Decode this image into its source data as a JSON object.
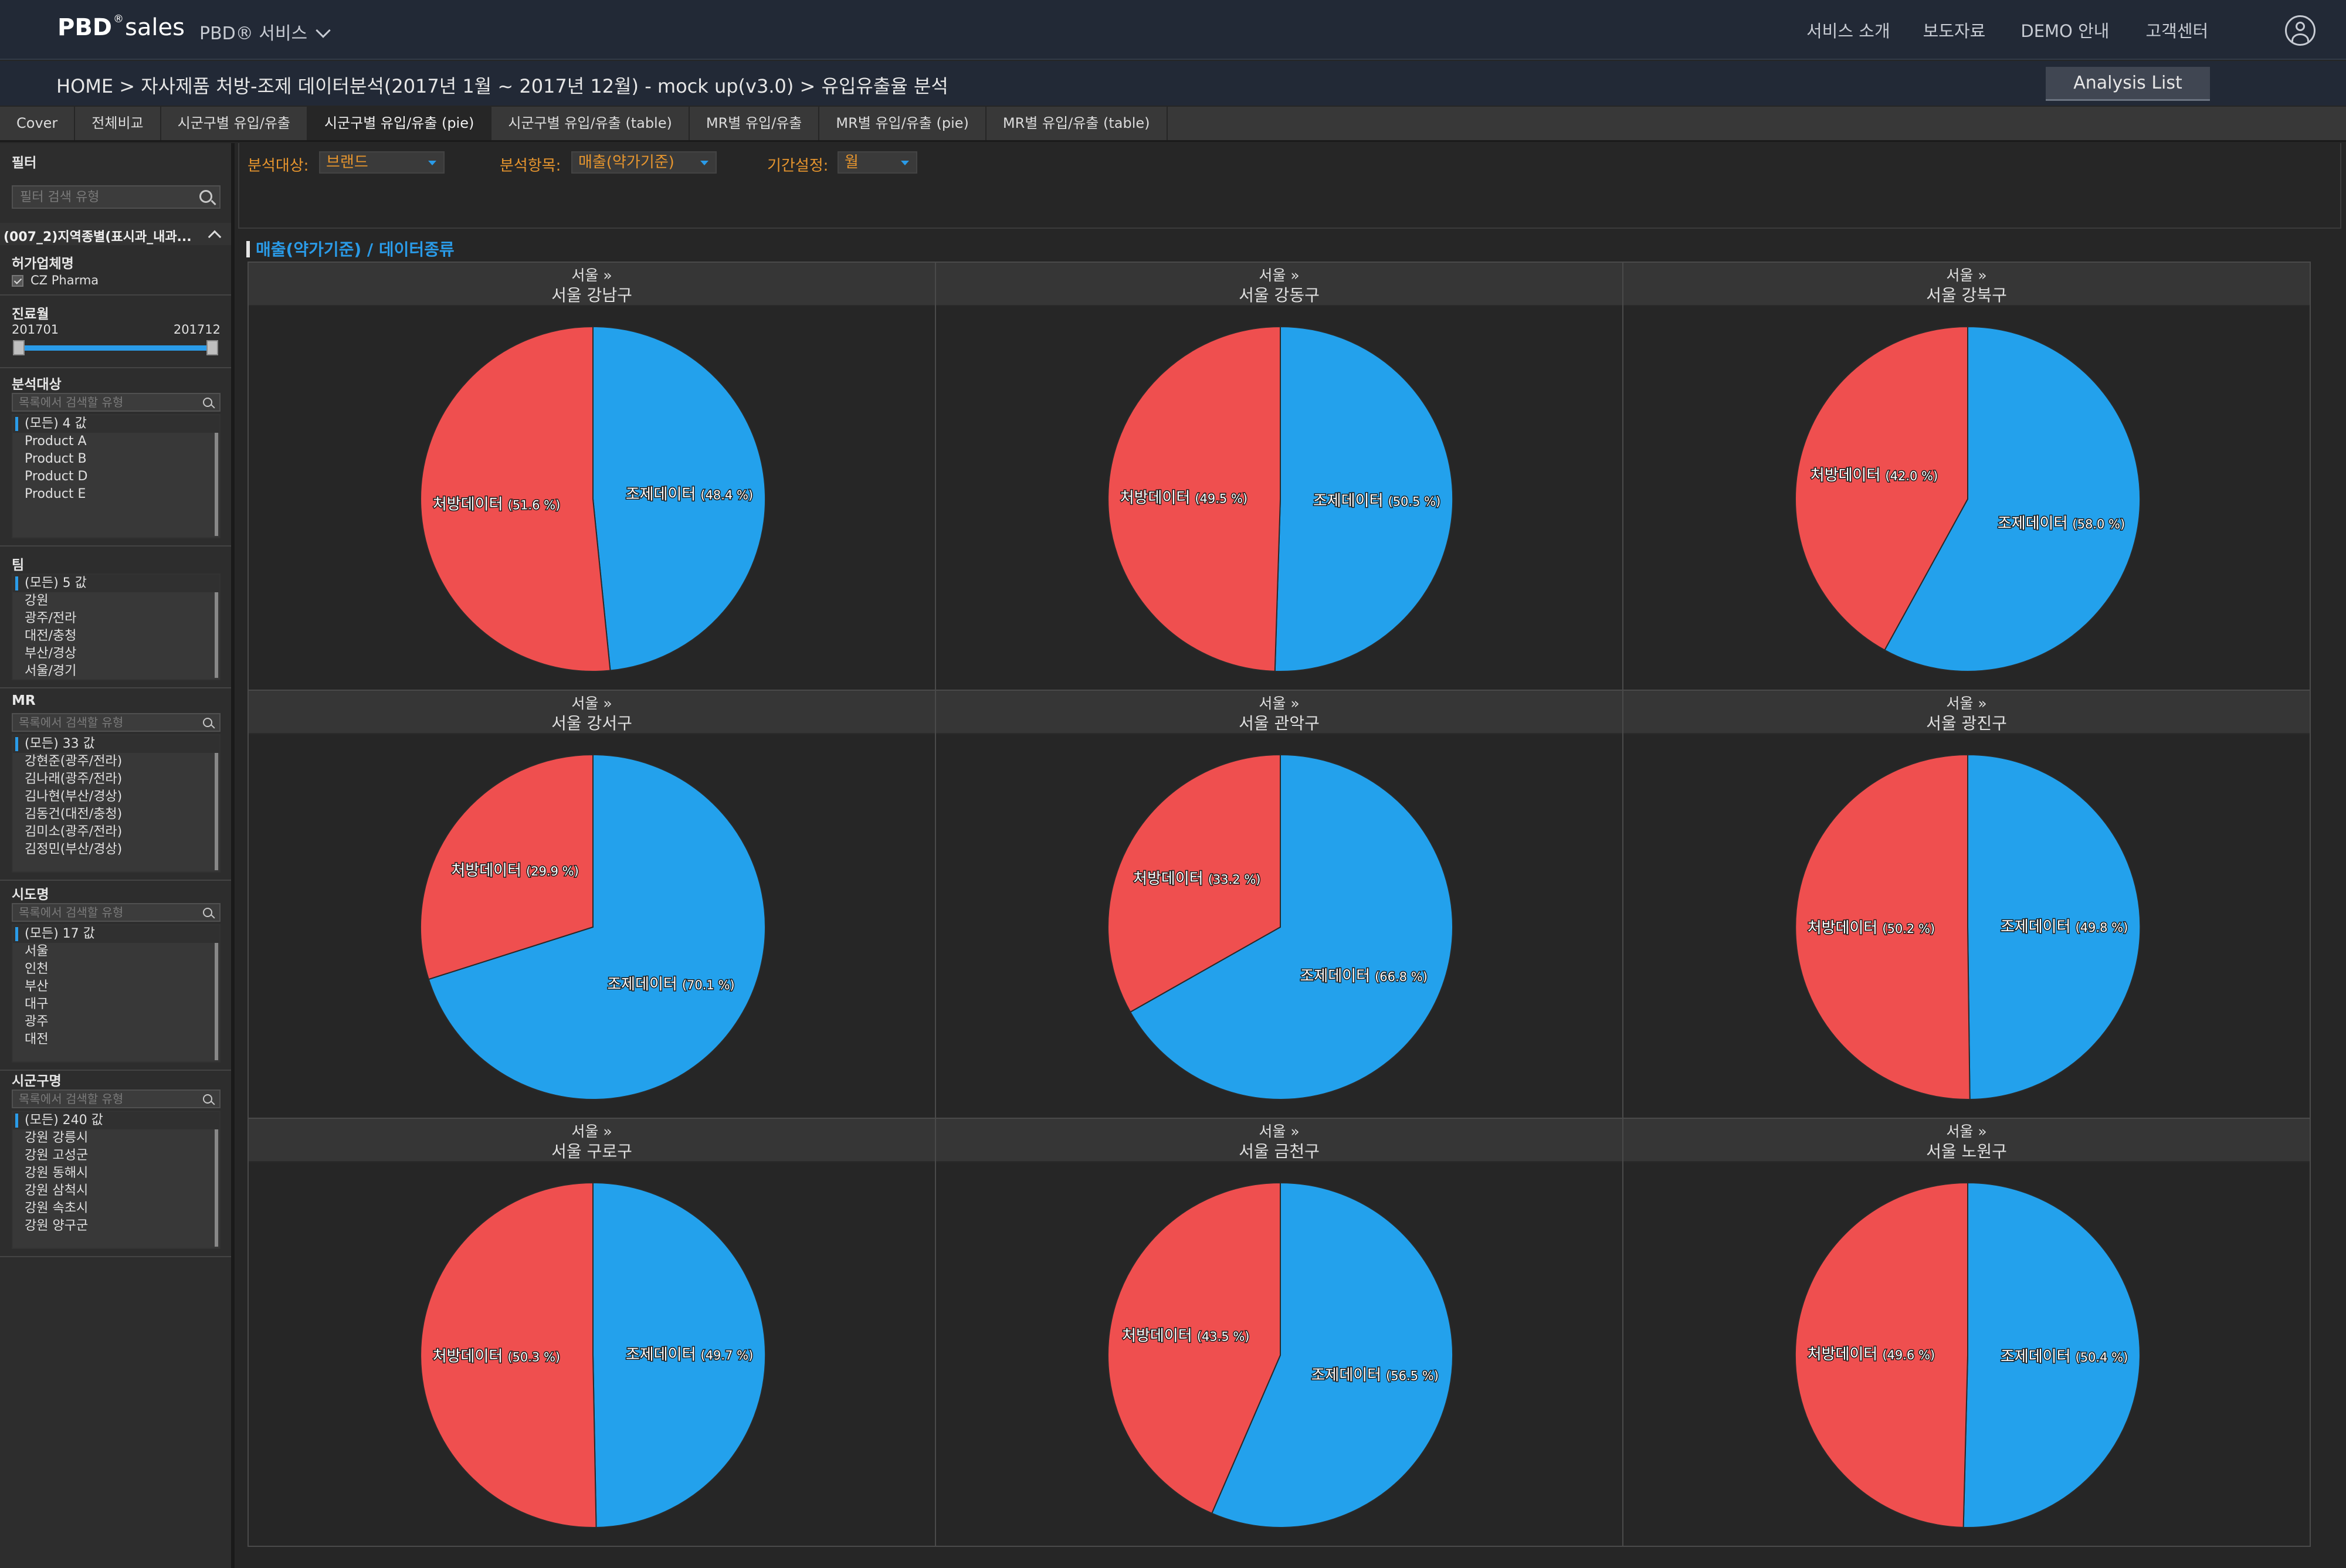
{
  "header": {
    "logo_brand": "PBD",
    "logo_mark": "®",
    "logo_product": "sales",
    "service_menu": "PBD® 서비스",
    "nav": [
      "서비스 소개",
      "보도자료",
      "DEMO 안내",
      "고객센터"
    ]
  },
  "breadcrumb": {
    "text": "HOME > 자사제품 처방-조제 데이터분석(2017년 1월 ~ 2017년 12월) - mock up(v3.0) > 유입유출율 분석"
  },
  "analysis_list_button": "Analysis List",
  "tabs": [
    "Cover",
    "전체비교",
    "시군구별 유입/유출",
    "시군구별 유입/유출 (pie)",
    "시군구별 유입/유출 (table)",
    "MR별 유입/유출",
    "MR별 유입/유출 (pie)",
    "MR별 유입/유출 (table)"
  ],
  "active_tab": 3,
  "sidebar": {
    "title": "필터",
    "search_placeholder": "필터 검색 유형",
    "field_header": "(007_2)지역종별(표시과_내과...",
    "licensee_title": "허가업체명",
    "licensee_value": "CZ Pharma",
    "period_title": "진료월",
    "period_from": "201701",
    "period_to": "201712",
    "list_search_placeholder": "목록에서 검색할 유형",
    "sections": [
      {
        "title": "분석대상",
        "has_search": true,
        "items": [
          "(모든) 4 값",
          "Product A",
          "Product B",
          "Product D",
          "Product E"
        ]
      },
      {
        "title": "팀",
        "has_search": false,
        "items": [
          "(모든) 5 값",
          "강원",
          "광주/전라",
          "대전/충청",
          "부산/경상",
          "서울/경기"
        ]
      },
      {
        "title": "MR",
        "has_search": true,
        "items": [
          "(모든) 33 값",
          "강현준(광주/전라)",
          "김나래(광주/전라)",
          "김나현(부산/경상)",
          "김동건(대전/충청)",
          "김미소(광주/전라)",
          "김정민(부산/경상)"
        ]
      },
      {
        "title": "시도명",
        "has_search": true,
        "items": [
          "(모든) 17 값",
          "서울",
          "인천",
          "부산",
          "대구",
          "광주",
          "대전"
        ]
      },
      {
        "title": "시군구명",
        "has_search": true,
        "items": [
          "(모든) 240 값",
          "강원 강릉시",
          "강원 고성군",
          "강원 동해시",
          "강원 삼척시",
          "강원 속초시",
          "강원 양구군"
        ]
      }
    ]
  },
  "params": [
    {
      "label": "분석대상:",
      "value": "브랜드"
    },
    {
      "label": "분석항목:",
      "value": "매출(약가기준)"
    },
    {
      "label": "기간설정:",
      "value": "월"
    }
  ],
  "chart_title": "매출(약가기준) / 데이터종류",
  "colors": {
    "prescription": "#ef4f4f",
    "dispensing": "#23a1ec",
    "accent": "#2a9be8",
    "param_label": "#e6952e"
  },
  "chart_data": {
    "type": "pie",
    "slice_names": [
      "처방데이터",
      "조제데이터"
    ],
    "panels": [
      {
        "region": "서울 »",
        "district": "서울 강남구",
        "values": [
          51.6,
          48.4
        ],
        "labels": [
          "(51.6 %)",
          "(48.4 %)"
        ]
      },
      {
        "region": "서울 »",
        "district": "서울 강동구",
        "values": [
          49.5,
          50.5
        ],
        "labels": [
          "(49.5 %)",
          "(50.5 %)"
        ]
      },
      {
        "region": "서울 »",
        "district": "서울 강북구",
        "values": [
          42.0,
          58.0
        ],
        "labels": [
          "(42.0 %)",
          "(58.0 %)"
        ]
      },
      {
        "region": "서울 »",
        "district": "서울 강서구",
        "values": [
          29.9,
          70.1
        ],
        "labels": [
          "(29.9 %)",
          "(70.1 %)"
        ]
      },
      {
        "region": "서울 »",
        "district": "서울 관악구",
        "values": [
          33.2,
          66.8
        ],
        "labels": [
          "(33.2 %)",
          "(66.8 %)"
        ]
      },
      {
        "region": "서울 »",
        "district": "서울 광진구",
        "values": [
          50.2,
          49.8
        ],
        "labels": [
          "(50.2 %)",
          "(49.8 %)"
        ]
      },
      {
        "region": "서울 »",
        "district": "서울 구로구",
        "values": [
          50.3,
          49.7
        ],
        "labels": [
          "(50.3 %)",
          "(49.7 %)"
        ]
      },
      {
        "region": "서울 »",
        "district": "서울 금천구",
        "values": [
          43.5,
          56.5
        ],
        "labels": [
          "(43.5 %)",
          "(56.5 %)"
        ]
      },
      {
        "region": "서울 »",
        "district": "서울 노원구",
        "values": [
          49.6,
          50.4
        ],
        "labels": [
          "(49.6 %)",
          "(50.4 %)"
        ]
      }
    ]
  }
}
